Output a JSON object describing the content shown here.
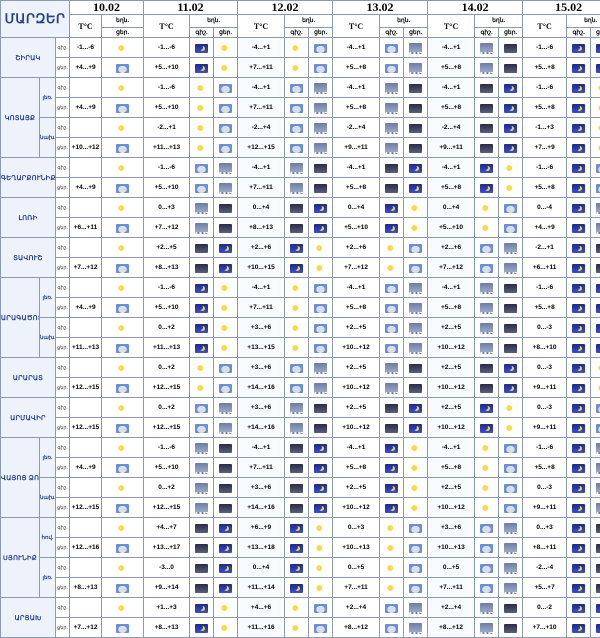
{
  "header": {
    "corner": "ՄԱՐԶԵՐ",
    "dates": [
      "10.02",
      "11.02",
      "12.02",
      "13.02",
      "14.02",
      "15.02"
    ],
    "temp_col": "T°C",
    "weather_col": "եղն.",
    "night_col": "գիշ.",
    "day_col": "ցեր."
  },
  "regions": [
    {
      "name": "ՇԻՐԱԿ",
      "rows": [
        {
          "sub": "",
          "night": "-1...-6",
          "day": "+4...+9",
          "t": [
            [
              "-1...-6",
              "+5...+10"
            ],
            [
              "-4...+1",
              "+7...+11"
            ],
            [
              "-4...+1",
              "+5...+8"
            ],
            [
              "-4...+1",
              "+5...+8"
            ],
            [
              "-1...-6",
              "+5...+8"
            ]
          ]
        }
      ]
    },
    {
      "name": "ԿՈՏԱՅՔ",
      "rows": [
        {
          "sub": "լեռ.",
          "night": "",
          "day": "+4...+9",
          "t": [
            [
              "-1...-6",
              "+5...+10"
            ],
            [
              "-4...+1",
              "+7...+11"
            ],
            [
              "-4...+1",
              "+5...+8"
            ],
            [
              "-4...+1",
              "+5...+8"
            ],
            [
              "-1...-6",
              "+5...+8"
            ]
          ]
        },
        {
          "sub": "նախ.",
          "night": "",
          "day": "+10...+12",
          "t": [
            [
              "-2...+1",
              "+11...+13"
            ],
            [
              "-2...+4",
              "+12...+15"
            ],
            [
              "-2...+4",
              "+9...+11"
            ],
            [
              "-2...+4",
              "+9...+11"
            ],
            [
              "-1...+3",
              "+7...+9"
            ]
          ]
        }
      ]
    },
    {
      "name": "ԳԵՂԱՐՔՈՒՆԻՔ",
      "rows": [
        {
          "sub": "",
          "night": "",
          "day": "+4...+9",
          "t": [
            [
              "-1...-6",
              "+5...+10"
            ],
            [
              "-4...+1",
              "+7...+11"
            ],
            [
              "-4...+1",
              "+5...+8"
            ],
            [
              "-4...+1",
              "+5...+8"
            ],
            [
              "-1...-6",
              "+5...+8"
            ]
          ]
        }
      ]
    },
    {
      "name": "ԼՈՌԻ",
      "rows": [
        {
          "sub": "",
          "night": "",
          "day": "+6...+11",
          "t": [
            [
              "0...+3",
              "+7...+12"
            ],
            [
              "0...+4",
              "+8...+13"
            ],
            [
              "0...+4",
              "+5...+10"
            ],
            [
              "0...+4",
              "+5...+10"
            ],
            [
              "0...-4",
              "+4...+9"
            ]
          ]
        }
      ]
    },
    {
      "name": "ՏԱՎՈՒՇ",
      "rows": [
        {
          "sub": "",
          "night": "",
          "day": "+7...+12",
          "t": [
            [
              "+2...+5",
              "+8...+13"
            ],
            [
              "+2...+6",
              "+10...+15"
            ],
            [
              "+2...+6",
              "+7...+12"
            ],
            [
              "+2...+6",
              "+7...+12"
            ],
            [
              "-2...+1",
              "+6...+11"
            ]
          ]
        }
      ]
    },
    {
      "name": "ԱՐԱԳԱԾՈՏՆ",
      "rows": [
        {
          "sub": "լեռ.",
          "night": "",
          "day": "+4...+9",
          "t": [
            [
              "-1...-6",
              "+5...+10"
            ],
            [
              "-4...+1",
              "+7...+11"
            ],
            [
              "-4...+1",
              "+5...+8"
            ],
            [
              "-4...+1",
              "+5...+8"
            ],
            [
              "-1...-6",
              "+5...+8"
            ]
          ]
        },
        {
          "sub": "նախ.",
          "night": "",
          "day": "+11...+13",
          "t": [
            [
              "0...+2",
              "+11...+13"
            ],
            [
              "+3...+6",
              "+13...+15"
            ],
            [
              "+2...+5",
              "+10...+12"
            ],
            [
              "+2...+5",
              "+10...+12"
            ],
            [
              "0...-3",
              "+8...+10"
            ]
          ]
        }
      ]
    },
    {
      "name": "ԱՐԱՐԱՏ",
      "rows": [
        {
          "sub": "",
          "night": "",
          "day": "+12...+15",
          "t": [
            [
              "0...+2",
              "+12...+15"
            ],
            [
              "+3...+6",
              "+14...+16"
            ],
            [
              "+2...+5",
              "+10...+12"
            ],
            [
              "+2...+5",
              "+10...+12"
            ],
            [
              "0...-3",
              "+9...+11"
            ]
          ]
        }
      ]
    },
    {
      "name": "ԱՐՄԱՎԻՐ",
      "rows": [
        {
          "sub": "",
          "night": "",
          "day": "+12...+15",
          "t": [
            [
              "0...+2",
              "+12...+15"
            ],
            [
              "+3...+6",
              "+14...+16"
            ],
            [
              "+2...+5",
              "+10...+12"
            ],
            [
              "+2...+5",
              "+10...+12"
            ],
            [
              "0...-3",
              "+9...+11"
            ]
          ]
        }
      ]
    },
    {
      "name": "ՎԱՅՈՑ ՁՈՐ",
      "rows": [
        {
          "sub": "լեռ.",
          "night": "",
          "day": "+4...+9",
          "t": [
            [
              "-1...-6",
              "+5...+10"
            ],
            [
              "-4...+1",
              "+7...+11"
            ],
            [
              "-4...+1",
              "+5...+8"
            ],
            [
              "-4...+1",
              "+5...+8"
            ],
            [
              "-1...-6",
              "+5...+8"
            ]
          ]
        },
        {
          "sub": "նախ.",
          "night": "",
          "day": "+12...+15",
          "t": [
            [
              "0...+2",
              "+12...+15"
            ],
            [
              "+3...+6",
              "+14...+16"
            ],
            [
              "+2...+5",
              "+10...+12"
            ],
            [
              "+2...+5",
              "+10...+12"
            ],
            [
              "0...-3",
              "+9...+11"
            ]
          ]
        }
      ]
    },
    {
      "name": "ՍՅՈՒՆԻՔ",
      "rows": [
        {
          "sub": "հով.",
          "night": "",
          "day": "+12...+16",
          "t": [
            [
              "+4...+7",
              "+13...+17"
            ],
            [
              "+6...+9",
              "+13...+18"
            ],
            [
              "0...+3",
              "+10...+13"
            ],
            [
              "+3...+6",
              "+10...+13"
            ],
            [
              "0...+3",
              "+8...+11"
            ]
          ]
        },
        {
          "sub": "լեռ.",
          "night": "",
          "day": "+8...+13",
          "t": [
            [
              "-3...0",
              "+9...+14"
            ],
            [
              "0...+4",
              "+11...+14"
            ],
            [
              "0...+5",
              "+7...+11"
            ],
            [
              "0...+5",
              "+7...+11"
            ],
            [
              "-2...-4",
              "+5...+7"
            ]
          ]
        }
      ]
    },
    {
      "name": "ԱՐՑԱԽ",
      "rows": [
        {
          "sub": "",
          "night": "",
          "day": "+7...+12",
          "t": [
            [
              "+1...+3",
              "+8...+13"
            ],
            [
              "+4...+6",
              "+11...+16"
            ],
            [
              "+2...+4",
              "+8...+12"
            ],
            [
              "+2...+4",
              "+8...+12"
            ],
            [
              "0...-2",
              "+7...+10"
            ]
          ]
        }
      ]
    }
  ],
  "row_labels": {
    "night": "գիշ.",
    "day": "ցեր."
  },
  "icon_set": {
    "night": "night-moon-icon",
    "day": "sun-cloud-icon",
    "cloudy": "cloud-icon",
    "snow": "snow-icon",
    "storm": "storm-icon"
  }
}
